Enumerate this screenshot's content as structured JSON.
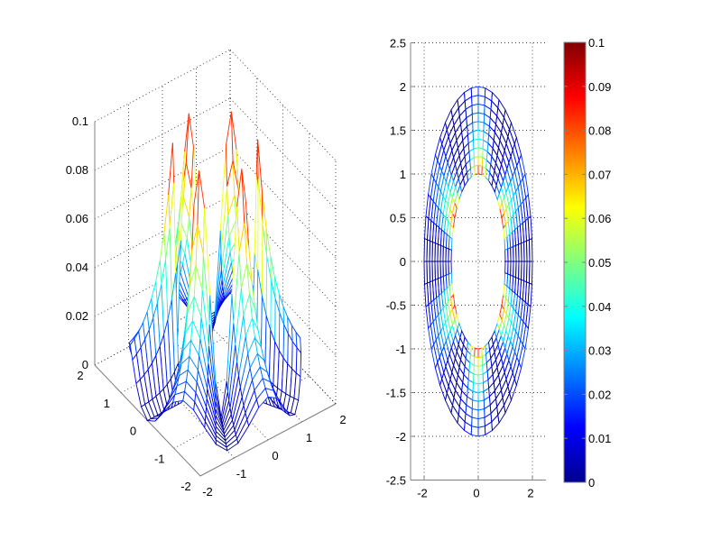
{
  "chart_data": [
    {
      "type": "surface-mesh-3d",
      "title": "",
      "xlim": [
        -2,
        2
      ],
      "ylim": [
        -2,
        2
      ],
      "zlim": [
        0,
        0.1
      ],
      "xticks": [
        "-2",
        "-1",
        "0",
        "1",
        "2"
      ],
      "yticks": [
        "-2",
        "-1",
        "0",
        "1",
        "2"
      ],
      "zticks": [
        "0",
        "0.02",
        "0.04",
        "0.06",
        "0.08",
        "0.1"
      ],
      "grid": true,
      "surface": {
        "domain": "annulus",
        "r_range": [
          1,
          2
        ],
        "theta_range_deg": [
          0,
          360
        ],
        "rings": 10,
        "spokes": 48,
        "max_value": 0.1,
        "peaks_near_inner_radius": true
      }
    },
    {
      "type": "mesh-2d-top-view",
      "xlim": [
        -2.5,
        2.5
      ],
      "ylim": [
        -2.5,
        2.5
      ],
      "xticks": [
        "-2",
        "0",
        "2"
      ],
      "yticks": [
        "2.5",
        "2",
        "1.5",
        "1",
        "0.5",
        "0",
        "-0.5",
        "-1",
        "-1.5",
        "-2",
        "-2.5"
      ],
      "grid": true,
      "colorbar": {
        "colormap": "jet",
        "range": [
          0,
          0.1
        ],
        "ticks": [
          "0",
          "0.01",
          "0.02",
          "0.03",
          "0.04",
          "0.05",
          "0.06",
          "0.07",
          "0.08",
          "0.09",
          "0.1"
        ],
        "placement": "right"
      }
    }
  ]
}
